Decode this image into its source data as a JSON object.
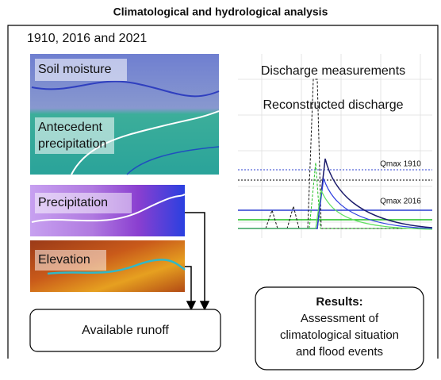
{
  "header": {
    "title": "Climatological and hydrological analysis"
  },
  "years": "1910, 2016 and 2021",
  "maps": {
    "soil_moisture": "Soil moisture",
    "antecedent_precipitation": [
      "Antecedent",
      "precipitation"
    ],
    "precipitation": "Precipitation",
    "elevation": "Elevation"
  },
  "available_runoff": "Available runoff",
  "hydrograph": {
    "discharge_measurements": "Discharge measurements",
    "reconstructed_discharge": "Reconstructed discharge",
    "qmax_1910": "Qmax 1910",
    "qmax_2016": "Qmax 2016"
  },
  "results": {
    "title": "Results:",
    "lines": [
      "Assessment of",
      "climatological situation",
      "and flood events"
    ]
  }
}
